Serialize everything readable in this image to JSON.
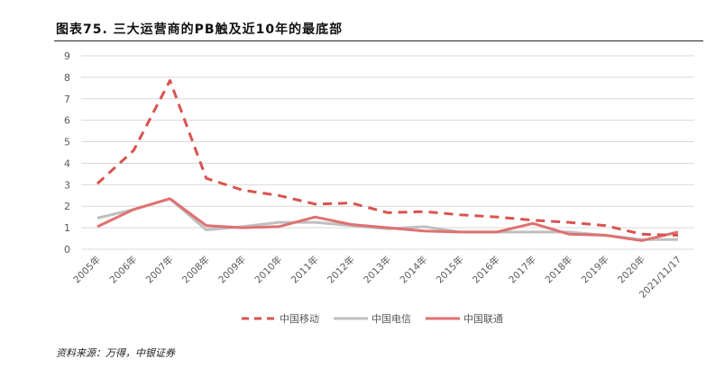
{
  "title": "图表75. 三大运营商的PB触及近10年的最底部",
  "source": "资料来源：万得，中银证券",
  "chart_data": {
    "type": "line",
    "title": "图表75. 三大运营商的PB触及近10年的最底部",
    "categories": [
      "2005年",
      "2006年",
      "2007年",
      "2008年",
      "2009年",
      "2010年",
      "2011年",
      "2012年",
      "2013年",
      "2014年",
      "2015年",
      "2016年",
      "2017年",
      "2018年",
      "2019年",
      "2020年",
      "2021/11/17"
    ],
    "ylim": [
      0,
      9
    ],
    "yticks": [
      0,
      1,
      2,
      3,
      4,
      5,
      6,
      7,
      8,
      9
    ],
    "grid": true,
    "legend": "bottom",
    "series": [
      {
        "name": "中国移动",
        "color": "#d9534f",
        "style": "dashed",
        "values": [
          3.05,
          4.6,
          7.85,
          3.3,
          2.75,
          2.5,
          2.1,
          2.15,
          1.7,
          1.75,
          1.6,
          1.5,
          1.35,
          1.25,
          1.1,
          0.7,
          0.65
        ]
      },
      {
        "name": "中国电信",
        "color": "#bfbfbf",
        "style": "solid",
        "values": [
          1.45,
          1.85,
          2.35,
          0.9,
          1.05,
          1.25,
          1.25,
          1.1,
          0.95,
          1.05,
          0.8,
          0.8,
          0.8,
          0.8,
          0.65,
          0.45,
          0.45
        ]
      },
      {
        "name": "中国联通",
        "color": "#e07070",
        "style": "solid",
        "values": [
          1.05,
          1.85,
          2.35,
          1.1,
          1.0,
          1.05,
          1.5,
          1.15,
          1.0,
          0.85,
          0.8,
          0.8,
          1.2,
          0.7,
          0.65,
          0.4,
          0.8
        ]
      }
    ]
  }
}
